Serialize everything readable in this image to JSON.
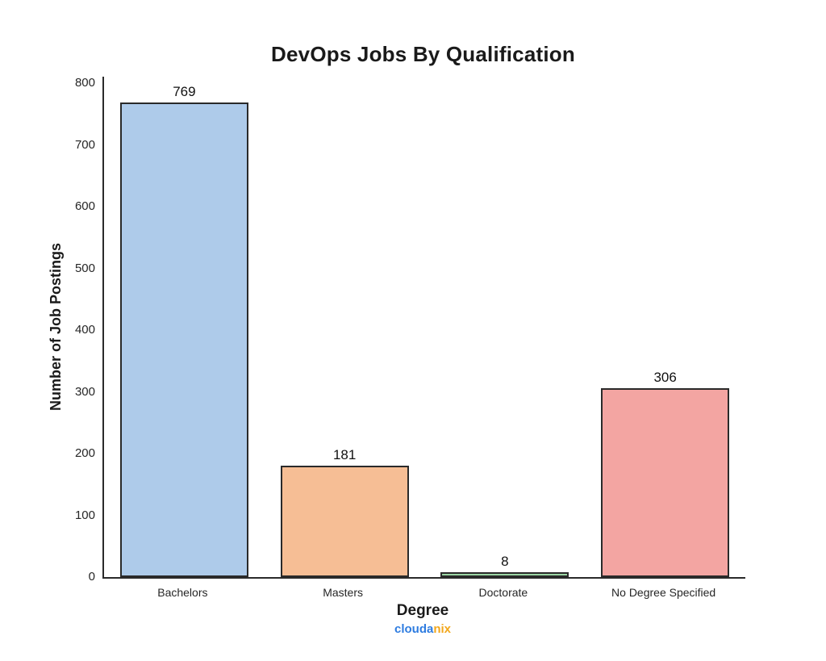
{
  "title": "DevOps Jobs By Qualification",
  "watermark": {
    "part1": "clouda",
    "part2": "nix",
    "part1_color": "#2e7ce0",
    "part2_color": "#f2a71b"
  },
  "chart_data": {
    "type": "bar",
    "title": "DevOps Jobs By Qualification",
    "xlabel": "Degree",
    "ylabel": "Number of Job Postings",
    "categories": [
      "Bachelors",
      "Masters",
      "Doctorate",
      "No Degree Specified"
    ],
    "values": [
      769,
      181,
      8,
      306
    ],
    "bar_colors": [
      "#aecbea",
      "#f6be95",
      "#9cd6a4",
      "#f3a5a2"
    ],
    "bar_edge_color": "#2a2a2a",
    "ylim": [
      0,
      800
    ],
    "ytick_step": 100,
    "grid": false,
    "legend": null,
    "value_labels": true
  }
}
